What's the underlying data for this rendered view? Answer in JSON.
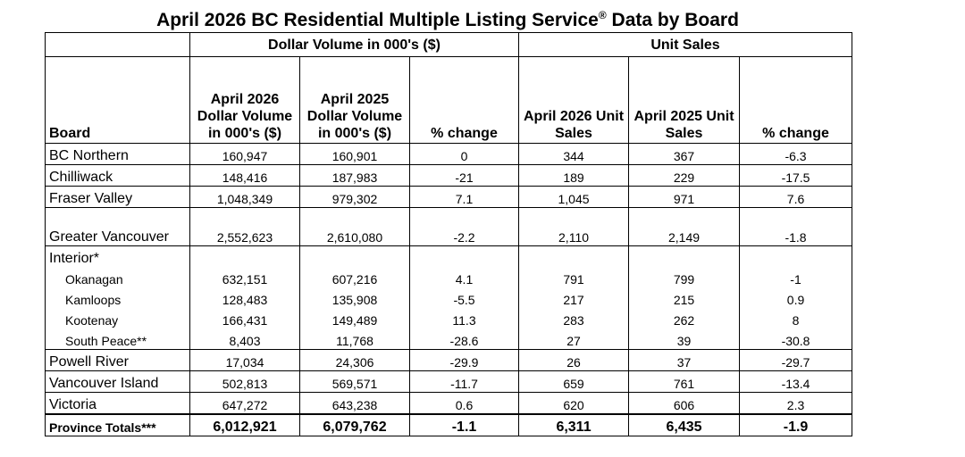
{
  "title": "April 2026 BC Residential Multiple Listing Service",
  "title_sup": "®",
  "title_suffix": " Data by Board",
  "group_headers": {
    "dollar": "Dollar Volume in 000's ($)",
    "units": "Unit Sales"
  },
  "column_headers": {
    "board": "Board",
    "dv2026": "April 2026 Dollar Volume in 000's ($)",
    "dv2025": "April 2025 Dollar Volume in 000's ($)",
    "dv_change": "% change",
    "us2026": "April 2026 Unit Sales",
    "us2025": "April 2025 Unit Sales",
    "us_change": "% change"
  },
  "rows": [
    {
      "board": "BC Northern",
      "dv2026": "160,947",
      "dv2025": "160,901",
      "dv_change": "0",
      "us2026": "344",
      "us2025": "367",
      "us_change": "-6.3"
    },
    {
      "board": "Chilliwack",
      "dv2026": "148,416",
      "dv2025": "187,983",
      "dv_change": "-21",
      "us2026": "189",
      "us2025": "229",
      "us_change": "-17.5"
    },
    {
      "board": "Fraser Valley",
      "dv2026": "1,048,349",
      "dv2025": "979,302",
      "dv_change": "7.1",
      "us2026": "1,045",
      "us2025": "971",
      "us_change": "7.6"
    },
    {
      "board": "Greater Vancouver",
      "dv2026": "2,552,623",
      "dv2025": "2,610,080",
      "dv_change": "-2.2",
      "us2026": "2,110",
      "us2025": "2,149",
      "us_change": "-1.8"
    },
    {
      "board": "Interior*",
      "dv2026": "",
      "dv2025": "",
      "dv_change": "",
      "us2026": "",
      "us2025": "",
      "us_change": ""
    },
    {
      "board": "Okanagan",
      "dv2026": "632,151",
      "dv2025": "607,216",
      "dv_change": "4.1",
      "us2026": "791",
      "us2025": "799",
      "us_change": "-1"
    },
    {
      "board": "Kamloops",
      "dv2026": "128,483",
      "dv2025": "135,908",
      "dv_change": "-5.5",
      "us2026": "217",
      "us2025": "215",
      "us_change": "0.9"
    },
    {
      "board": "Kootenay",
      "dv2026": "166,431",
      "dv2025": "149,489",
      "dv_change": "11.3",
      "us2026": "283",
      "us2025": "262",
      "us_change": "8"
    },
    {
      "board": "South Peace**",
      "dv2026": "8,403",
      "dv2025": "11,768",
      "dv_change": "-28.6",
      "us2026": "27",
      "us2025": "39",
      "us_change": "-30.8"
    },
    {
      "board": "Powell River",
      "dv2026": "17,034",
      "dv2025": "24,306",
      "dv_change": "-29.9",
      "us2026": "26",
      "us2025": "37",
      "us_change": "-29.7"
    },
    {
      "board": "Vancouver Island",
      "dv2026": "502,813",
      "dv2025": "569,571",
      "dv_change": "-11.7",
      "us2026": "659",
      "us2025": "761",
      "us_change": "-13.4"
    },
    {
      "board": "Victoria",
      "dv2026": "647,272",
      "dv2025": "643,238",
      "dv_change": "0.6",
      "us2026": "620",
      "us2025": "606",
      "us_change": "2.3"
    }
  ],
  "totals": {
    "board": "Province Totals***",
    "dv2026": "6,012,921",
    "dv2025": "6,079,762",
    "dv_change": "-1.1",
    "us2026": "6,311",
    "us2025": "6,435",
    "us_change": "-1.9"
  }
}
